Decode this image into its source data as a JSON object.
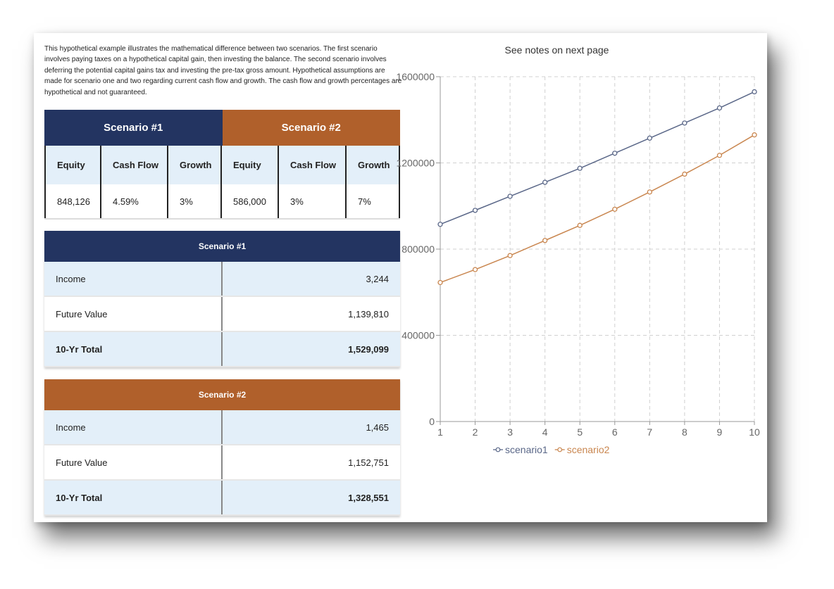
{
  "intro_text": "This hypothetical example illustrates the mathematical difference between two scenarios. The first scenario involves paying taxes on a hypothetical capital gain, then investing the balance. The second scenario involves deferring the potential capital gains tax and investing the pre-tax gross amount. Hypothetical assumptions are made for scenario one and two regarding current cash flow and growth. The cash flow and growth percentages are hypothetical and not guaranteed.",
  "scenario_table": {
    "s1_title": "Scenario #1",
    "s2_title": "Scenario #2",
    "headers": [
      "Equity",
      "Cash Flow",
      "Growth",
      "Equity",
      "Cash Flow",
      "Growth"
    ],
    "values": [
      "848,126",
      "4.59%",
      "3%",
      "586,000",
      "3%",
      "7%"
    ]
  },
  "results": [
    {
      "title": "Scenario #1",
      "rows": [
        {
          "label": "Income",
          "value": "3,244"
        },
        {
          "label": "Future Value",
          "value": "1,139,810"
        },
        {
          "label": "10-Yr Total",
          "value": "1,529,099"
        }
      ]
    },
    {
      "title": "Scenario #2",
      "rows": [
        {
          "label": "Income",
          "value": "1,465"
        },
        {
          "label": "Future Value",
          "value": "1,152,751"
        },
        {
          "label": "10-Yr Total",
          "value": "1,328,551"
        }
      ]
    }
  ],
  "colors": {
    "navy": "#233461",
    "rust": "#b0602b",
    "series1": "#5a6788",
    "series2": "#c9864f"
  },
  "chart_data": {
    "type": "line",
    "title": "See notes on next page",
    "x": [
      1,
      2,
      3,
      4,
      5,
      6,
      7,
      8,
      9,
      10
    ],
    "ylim": [
      0,
      1600000
    ],
    "yticks": [
      0,
      400000,
      800000,
      1200000,
      1600000
    ],
    "grid": true,
    "legend": "bottom",
    "series": [
      {
        "name": "scenario1",
        "values": [
          915000,
          980000,
          1045000,
          1110000,
          1175000,
          1245000,
          1315000,
          1385000,
          1455000,
          1530000
        ]
      },
      {
        "name": "scenario2",
        "values": [
          645000,
          705000,
          770000,
          840000,
          910000,
          985000,
          1065000,
          1148000,
          1235000,
          1330000
        ]
      }
    ]
  }
}
